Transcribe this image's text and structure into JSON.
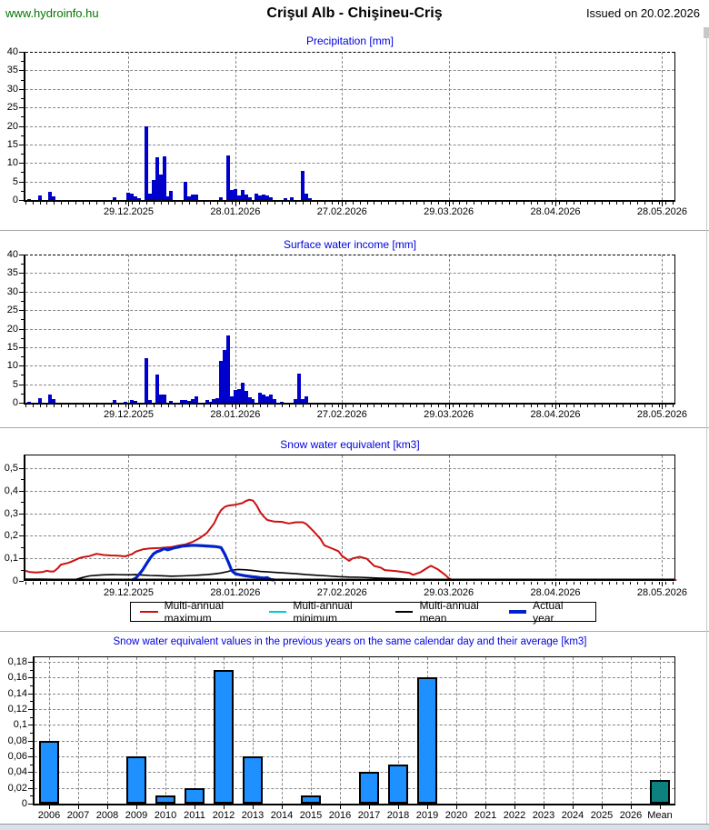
{
  "page": {
    "site": "www.hydroinfo.hu",
    "title": "Crişul Alb - Chişineu-Criş",
    "issued": "Issued on 20.02.2026"
  },
  "colors": {
    "site_link": "#007700",
    "chart_title": "#0000dd",
    "time_bar": "#0000cc",
    "max_line": "#cc1111",
    "min_line": "#00cccc",
    "mean_line": "#000000",
    "actual_line": "#0022cc",
    "year_bar": "#1e90ff",
    "mean_bar": "#0d8080",
    "grid": "#888888"
  },
  "chart_data": [
    {
      "type": "bar",
      "title": "Precipitation [mm]",
      "ylim": [
        0,
        40
      ],
      "ytick": 5,
      "bar_color": "#0000cc",
      "xticks": [
        {
          "label": "29.12.2025",
          "day": 29
        },
        {
          "label": "28.01.2026",
          "day": 59
        },
        {
          "label": "27.02.2026",
          "day": 89
        },
        {
          "label": "29.03.2026",
          "day": 119
        },
        {
          "label": "28.04.2026",
          "day": 149
        },
        {
          "label": "28.05.2026",
          "day": 179
        }
      ],
      "bars": [
        [
          1,
          0.3
        ],
        [
          4,
          1.3
        ],
        [
          7,
          2.3
        ],
        [
          8,
          1.0
        ],
        [
          25,
          0.7
        ],
        [
          29,
          2.0
        ],
        [
          30,
          1.6
        ],
        [
          31,
          1.1
        ],
        [
          32,
          0.4
        ],
        [
          34,
          20.0
        ],
        [
          35,
          1.8
        ],
        [
          36,
          5.3
        ],
        [
          37,
          11.5
        ],
        [
          38,
          6.8
        ],
        [
          39,
          11.8
        ],
        [
          40,
          1.0
        ],
        [
          41,
          2.5
        ],
        [
          45,
          5.0
        ],
        [
          46,
          0.9
        ],
        [
          47,
          1.5
        ],
        [
          48,
          1.5
        ],
        [
          55,
          0.8
        ],
        [
          57,
          12.0
        ],
        [
          58,
          2.8
        ],
        [
          59,
          3.0
        ],
        [
          60,
          1.3
        ],
        [
          61,
          2.7
        ],
        [
          62,
          1.5
        ],
        [
          63,
          0.8
        ],
        [
          65,
          1.8
        ],
        [
          66,
          1.2
        ],
        [
          67,
          1.5
        ],
        [
          68,
          1.3
        ],
        [
          69,
          0.8
        ],
        [
          73,
          0.5
        ],
        [
          75,
          0.8
        ],
        [
          78,
          7.8
        ],
        [
          79,
          1.8
        ],
        [
          80,
          0.5
        ]
      ]
    },
    {
      "type": "bar",
      "title": "Surface water income [mm]",
      "ylim": [
        0,
        40
      ],
      "ytick": 5,
      "bar_color": "#0000cc",
      "xticks": [
        {
          "label": "29.12.2025",
          "day": 29
        },
        {
          "label": "28.01.2026",
          "day": 59
        },
        {
          "label": "27.02.2026",
          "day": 89
        },
        {
          "label": "29.03.2026",
          "day": 119
        },
        {
          "label": "28.04.2026",
          "day": 149
        },
        {
          "label": "28.05.2026",
          "day": 179
        }
      ],
      "bars": [
        [
          1,
          0.3
        ],
        [
          4,
          1.3
        ],
        [
          7,
          2.3
        ],
        [
          8,
          1.0
        ],
        [
          25,
          0.7
        ],
        [
          28,
          0.3
        ],
        [
          30,
          0.8
        ],
        [
          31,
          0.5
        ],
        [
          34,
          12.0
        ],
        [
          35,
          0.8
        ],
        [
          37,
          7.5
        ],
        [
          38,
          2.3
        ],
        [
          39,
          2.2
        ],
        [
          41,
          0.5
        ],
        [
          44,
          0.8
        ],
        [
          45,
          0.8
        ],
        [
          46,
          0.5
        ],
        [
          47,
          1.0
        ],
        [
          48,
          1.8
        ],
        [
          51,
          0.8
        ],
        [
          52,
          0.3
        ],
        [
          53,
          1.0
        ],
        [
          54,
          1.3
        ],
        [
          55,
          11.2
        ],
        [
          56,
          14.2
        ],
        [
          57,
          18.2
        ],
        [
          58,
          1.8
        ],
        [
          59,
          3.5
        ],
        [
          60,
          3.8
        ],
        [
          61,
          5.3
        ],
        [
          62,
          3.3
        ],
        [
          63,
          1.5
        ],
        [
          64,
          1.0
        ],
        [
          66,
          2.8
        ],
        [
          67,
          2.2
        ],
        [
          68,
          1.8
        ],
        [
          69,
          2.2
        ],
        [
          70,
          1.0
        ],
        [
          72,
          0.3
        ],
        [
          76,
          1.0
        ],
        [
          77,
          7.8
        ],
        [
          78,
          1.0
        ],
        [
          79,
          1.8
        ]
      ]
    },
    {
      "type": "line",
      "title": "Snow water equivalent [km3]",
      "ylim": [
        0,
        0.5
      ],
      "ytick": 0.1,
      "decimal_comma": true,
      "xticks": [
        {
          "label": "29.12.2025",
          "day": 29
        },
        {
          "label": "28.01.2026",
          "day": 59
        },
        {
          "label": "27.02.2026",
          "day": 89
        },
        {
          "label": "29.03.2026",
          "day": 119
        },
        {
          "label": "28.04.2026",
          "day": 149
        },
        {
          "label": "28.05.2026",
          "day": 179
        }
      ],
      "series": [
        {
          "name": "Multi-annual minimum",
          "color": "#00cccc",
          "width": 2,
          "points": [
            [
              0,
              0
            ],
            [
              183,
              0
            ]
          ]
        },
        {
          "name": "Multi-annual mean",
          "color": "#000000",
          "width": 1.6,
          "points": [
            [
              0,
              0.008
            ],
            [
              4,
              0.008
            ],
            [
              8,
              0.007
            ],
            [
              10,
              0.005
            ],
            [
              14,
              0.006
            ],
            [
              16,
              0.015
            ],
            [
              18,
              0.022
            ],
            [
              20,
              0.025
            ],
            [
              22,
              0.027
            ],
            [
              25,
              0.028
            ],
            [
              29,
              0.027
            ],
            [
              31,
              0.028
            ],
            [
              33,
              0.026
            ],
            [
              35,
              0.024
            ],
            [
              38,
              0.023
            ],
            [
              41,
              0.021
            ],
            [
              44,
              0.022
            ],
            [
              47,
              0.024
            ],
            [
              49,
              0.026
            ],
            [
              51,
              0.028
            ],
            [
              53,
              0.031
            ],
            [
              55,
              0.035
            ],
            [
              57,
              0.042
            ],
            [
              58,
              0.047
            ],
            [
              59,
              0.05
            ],
            [
              60,
              0.051
            ],
            [
              62,
              0.049
            ],
            [
              64,
              0.046
            ],
            [
              66,
              0.042
            ],
            [
              68,
              0.04
            ],
            [
              70,
              0.038
            ],
            [
              73,
              0.035
            ],
            [
              76,
              0.032
            ],
            [
              79,
              0.028
            ],
            [
              82,
              0.025
            ],
            [
              85,
              0.022
            ],
            [
              88,
              0.019
            ],
            [
              91,
              0.017
            ],
            [
              94,
              0.016
            ],
            [
              97,
              0.014
            ],
            [
              100,
              0.012
            ],
            [
              103,
              0.011
            ],
            [
              106,
              0.009
            ],
            [
              110,
              0.007
            ],
            [
              114,
              0.005
            ],
            [
              118,
              0.004
            ],
            [
              122,
              0.003
            ],
            [
              128,
              0.002
            ],
            [
              134,
              0.002
            ],
            [
              140,
              0.003
            ],
            [
              144,
              0.004
            ],
            [
              147,
              0.002
            ],
            [
              150,
              0.001
            ],
            [
              155,
              0
            ],
            [
              183,
              0
            ]
          ]
        },
        {
          "name": "Multi-annual maximum",
          "color": "#cc1111",
          "width": 2,
          "points": [
            [
              0,
              0.045
            ],
            [
              1,
              0.04
            ],
            [
              3,
              0.037
            ],
            [
              5,
              0.04
            ],
            [
              6,
              0.045
            ],
            [
              7,
              0.042
            ],
            [
              8,
              0.042
            ],
            [
              9,
              0.055
            ],
            [
              10,
              0.072
            ],
            [
              12,
              0.08
            ],
            [
              13,
              0.086
            ],
            [
              15,
              0.1
            ],
            [
              16,
              0.105
            ],
            [
              18,
              0.11
            ],
            [
              20,
              0.12
            ],
            [
              22,
              0.115
            ],
            [
              24,
              0.113
            ],
            [
              26,
              0.112
            ],
            [
              28,
              0.109
            ],
            [
              30,
              0.119
            ],
            [
              31,
              0.13
            ],
            [
              33,
              0.14
            ],
            [
              35,
              0.144
            ],
            [
              38,
              0.146
            ],
            [
              41,
              0.15
            ],
            [
              43,
              0.157
            ],
            [
              45,
              0.162
            ],
            [
              47,
              0.173
            ],
            [
              49,
              0.19
            ],
            [
              51,
              0.213
            ],
            [
              53,
              0.254
            ],
            [
              54,
              0.287
            ],
            [
              55,
              0.314
            ],
            [
              56,
              0.328
            ],
            [
              57,
              0.334
            ],
            [
              59,
              0.338
            ],
            [
              61,
              0.345
            ],
            [
              62,
              0.355
            ],
            [
              63,
              0.36
            ],
            [
              64,
              0.356
            ],
            [
              65,
              0.335
            ],
            [
              66,
              0.305
            ],
            [
              67,
              0.285
            ],
            [
              68,
              0.27
            ],
            [
              70,
              0.263
            ],
            [
              72,
              0.262
            ],
            [
              74,
              0.255
            ],
            [
              76,
              0.26
            ],
            [
              78,
              0.26
            ],
            [
              79,
              0.252
            ],
            [
              81,
              0.22
            ],
            [
              83,
              0.185
            ],
            [
              84,
              0.158
            ],
            [
              86,
              0.145
            ],
            [
              88,
              0.132
            ],
            [
              89,
              0.111
            ],
            [
              91,
              0.089
            ],
            [
              92,
              0.1
            ],
            [
              94,
              0.107
            ],
            [
              96,
              0.098
            ],
            [
              98,
              0.067
            ],
            [
              100,
              0.058
            ],
            [
              101,
              0.048
            ],
            [
              104,
              0.044
            ],
            [
              106,
              0.04
            ],
            [
              108,
              0.035
            ],
            [
              109,
              0.027
            ],
            [
              111,
              0.038
            ],
            [
              113,
              0.058
            ],
            [
              114,
              0.067
            ],
            [
              116,
              0.051
            ],
            [
              118,
              0.027
            ],
            [
              119,
              0.012
            ],
            [
              120,
              0
            ],
            [
              183,
              0
            ]
          ]
        },
        {
          "name": "Actual year",
          "color": "#0022cc",
          "width": 3.2,
          "points": [
            [
              30,
              0
            ],
            [
              31,
              0.012
            ],
            [
              32,
              0.03
            ],
            [
              33,
              0.05
            ],
            [
              34,
              0.075
            ],
            [
              35,
              0.1
            ],
            [
              36,
              0.12
            ],
            [
              37,
              0.13
            ],
            [
              38,
              0.135
            ],
            [
              39,
              0.143
            ],
            [
              40,
              0.138
            ],
            [
              42,
              0.147
            ],
            [
              43,
              0.15
            ],
            [
              44,
              0.154
            ],
            [
              46,
              0.157
            ],
            [
              47,
              0.158
            ],
            [
              49,
              0.157
            ],
            [
              51,
              0.155
            ],
            [
              53,
              0.153
            ],
            [
              54,
              0.151
            ],
            [
              55,
              0.148
            ],
            [
              56,
              0.12
            ],
            [
              57,
              0.085
            ],
            [
              58,
              0.045
            ],
            [
              59,
              0.032
            ],
            [
              60,
              0.028
            ],
            [
              61,
              0.025
            ],
            [
              62,
              0.022
            ],
            [
              63,
              0.02
            ],
            [
              64,
              0.018
            ],
            [
              65,
              0.017
            ],
            [
              66,
              0.014
            ],
            [
              67,
              0.013
            ],
            [
              68,
              0.014
            ],
            [
              69,
              0.006
            ],
            [
              70,
              0
            ]
          ]
        }
      ],
      "legend": [
        "Multi-annual maximum",
        "Multi-annual minimum",
        "Multi-annual mean",
        "Actual year"
      ],
      "legend_order": [
        2,
        0,
        1,
        3
      ]
    },
    {
      "type": "bar",
      "title": "Snow water equivalent values in the previous years on the same calendar day and their average [km3]",
      "ylim": [
        0,
        0.18
      ],
      "ytick": 0.02,
      "decimal_comma": true,
      "bar_color": "#1e90ff",
      "mean_bar_color": "#0d8080",
      "categories": [
        "2006",
        "2007",
        "2008",
        "2009",
        "2010",
        "2011",
        "2012",
        "2013",
        "2014",
        "2015",
        "2016",
        "2017",
        "2018",
        "2019",
        "2020",
        "2021",
        "2022",
        "2023",
        "2024",
        "2025",
        "2026",
        "Mean"
      ],
      "values": [
        0.08,
        0,
        0,
        0.06,
        0.01,
        0.02,
        0.17,
        0.06,
        0,
        0.01,
        0,
        0.04,
        0.05,
        0.16,
        0,
        0,
        0,
        0,
        0,
        0,
        0,
        0.03
      ]
    }
  ]
}
